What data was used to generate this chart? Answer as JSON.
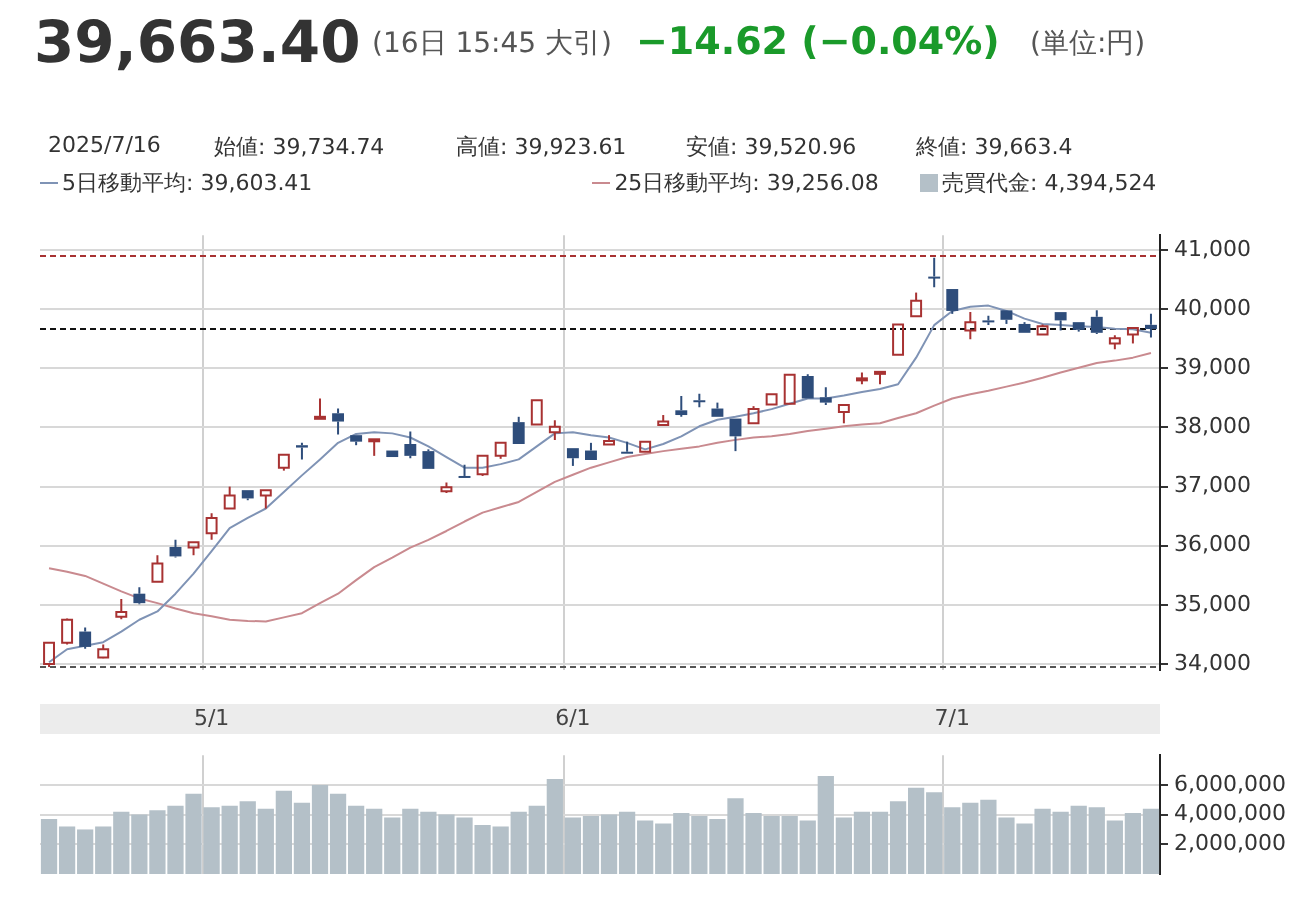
{
  "chart_data": [
    {
      "type": "candlestick",
      "title": "39,663.40",
      "subtitle": "(16日 15:45 大引)",
      "annotations": [
        "−14.62 (−0.04%)",
        "(単位:円)",
        "2025/7/16",
        "始値: 39,734.74",
        "高値: 39,923.61",
        "安値: 39,520.96",
        "終値: 39,663.4"
      ],
      "categories": [
        null,
        null,
        null,
        null,
        null,
        null,
        null,
        null,
        null,
        "5/1",
        null,
        null,
        null,
        null,
        null,
        null,
        null,
        null,
        null,
        null,
        null,
        null,
        null,
        null,
        null,
        null,
        null,
        null,
        null,
        "6/1",
        null,
        null,
        null,
        null,
        null,
        null,
        null,
        null,
        null,
        null,
        null,
        null,
        null,
        null,
        null,
        null,
        null,
        null,
        null,
        null,
        "7/1",
        null,
        null,
        null,
        null,
        null,
        null,
        null,
        null,
        null,
        null,
        null
      ],
      "ohlc": [
        [
          34000,
          34360,
          33950,
          34360
        ],
        [
          34360,
          34770,
          34330,
          34750
        ],
        [
          34550,
          34620,
          34260,
          34290
        ],
        [
          34110,
          34330,
          34100,
          34250
        ],
        [
          34800,
          35100,
          34760,
          34880
        ],
        [
          35190,
          35300,
          35010,
          35030
        ],
        [
          35390,
          35840,
          35390,
          35700
        ],
        [
          35980,
          36100,
          35800,
          35820
        ],
        [
          35970,
          36060,
          35840,
          36060
        ],
        [
          36210,
          36550,
          36100,
          36470
        ],
        [
          36630,
          37000,
          36630,
          36850
        ],
        [
          36940,
          36940,
          36770,
          36800
        ],
        [
          36850,
          36940,
          36630,
          36940
        ],
        [
          37320,
          37540,
          37270,
          37540
        ],
        [
          37700,
          37740,
          37460,
          37660
        ],
        [
          38170,
          38490,
          38170,
          38180
        ],
        [
          38240,
          38320,
          37880,
          38100
        ],
        [
          37870,
          37870,
          37700,
          37760
        ],
        [
          37780,
          37800,
          37520,
          37800
        ],
        [
          37610,
          37610,
          37500,
          37500
        ],
        [
          37720,
          37930,
          37480,
          37520
        ],
        [
          37600,
          37630,
          37300,
          37300
        ],
        [
          36920,
          37070,
          36890,
          36990
        ],
        [
          37180,
          37370,
          37170,
          37170
        ],
        [
          37210,
          37520,
          37180,
          37520
        ],
        [
          37520,
          37740,
          37470,
          37740
        ],
        [
          38090,
          38180,
          37720,
          37720
        ],
        [
          38050,
          38460,
          38050,
          38460
        ],
        [
          37920,
          38120,
          37790,
          38010
        ],
        [
          37650,
          37650,
          37350,
          37480
        ],
        [
          37610,
          37740,
          37450,
          37450
        ],
        [
          37710,
          37870,
          37710,
          37770
        ],
        [
          37590,
          37760,
          37560,
          37560
        ],
        [
          37590,
          37760,
          37590,
          37760
        ],
        [
          38040,
          38210,
          38040,
          38100
        ],
        [
          38290,
          38530,
          38180,
          38210
        ],
        [
          38460,
          38570,
          38340,
          38440
        ],
        [
          38320,
          38420,
          38180,
          38180
        ],
        [
          38150,
          38150,
          37600,
          37850
        ],
        [
          38070,
          38360,
          38070,
          38310
        ],
        [
          38390,
          38560,
          38390,
          38560
        ],
        [
          38400,
          38890,
          38400,
          38890
        ],
        [
          38870,
          38900,
          38490,
          38490
        ],
        [
          38510,
          38680,
          38380,
          38420
        ],
        [
          38260,
          38380,
          38070,
          38380
        ],
        [
          38810,
          38930,
          38730,
          38830
        ],
        [
          38930,
          38940,
          38730,
          38940
        ],
        [
          39230,
          39740,
          39230,
          39740
        ],
        [
          39880,
          40280,
          39880,
          40140
        ],
        [
          40550,
          40870,
          40370,
          40540
        ],
        [
          40340,
          40340,
          39920,
          39970
        ],
        [
          39640,
          39950,
          39490,
          39780
        ],
        [
          39810,
          39890,
          39730,
          39780
        ],
        [
          39980,
          39980,
          39750,
          39820
        ],
        [
          39750,
          39780,
          39600,
          39600
        ],
        [
          39570,
          39740,
          39570,
          39710
        ],
        [
          39950,
          39950,
          39640,
          39810
        ],
        [
          39780,
          39780,
          39620,
          39650
        ],
        [
          39870,
          39980,
          39580,
          39600
        ],
        [
          39420,
          39560,
          39320,
          39510
        ],
        [
          39570,
          39680,
          39420,
          39680
        ],
        [
          39734.74,
          39923.61,
          39520.96,
          39663.4
        ]
      ],
      "colors": [
        "#a83232",
        "#a83232",
        "#2e4d7b",
        "#a83232",
        "#a83232",
        "#2e4d7b",
        "#a83232",
        "#2e4d7b",
        "#a83232",
        "#a83232",
        "#a83232",
        "#2e4d7b",
        "#a83232",
        "#a83232",
        "#2e4d7b",
        "#a83232",
        "#2e4d7b",
        "#2e4d7b",
        "#a83232",
        "#2e4d7b",
        "#2e4d7b",
        "#2e4d7b",
        "#a83232",
        "#2e4d7b",
        "#a83232",
        "#a83232",
        "#2e4d7b",
        "#a83232",
        "#a83232",
        "#2e4d7b",
        "#2e4d7b",
        "#a83232",
        "#2e4d7b",
        "#a83232",
        "#a83232",
        "#2e4d7b",
        "#2e4d7b",
        "#2e4d7b",
        "#2e4d7b",
        "#a83232",
        "#a83232",
        "#a83232",
        "#2e4d7b",
        "#2e4d7b",
        "#a83232",
        "#a83232",
        "#a83232",
        "#a83232",
        "#a83232",
        "#2e4d7b",
        "#2e4d7b",
        "#a83232",
        "#2e4d7b",
        "#2e4d7b",
        "#2e4d7b",
        "#a83232",
        "#2e4d7b",
        "#2e4d7b",
        "#2e4d7b",
        "#a83232",
        "#a83232",
        "#2e4d7b"
      ],
      "series": [
        {
          "type": "line",
          "name": "5日移動平均: 39,603.41",
          "color": "#7f93b5",
          "values": [
            34030,
            34250,
            34310,
            34370,
            34550,
            34750,
            34890,
            35190,
            35530,
            35910,
            36300,
            36470,
            36630,
            36910,
            37190,
            37460,
            37740,
            37890,
            37920,
            37900,
            37830,
            37680,
            37500,
            37320,
            37320,
            37380,
            37460,
            37680,
            37900,
            37920,
            37870,
            37830,
            37740,
            37630,
            37720,
            37850,
            38020,
            38130,
            38180,
            38240,
            38310,
            38400,
            38490,
            38490,
            38540,
            38600,
            38650,
            38730,
            39180,
            39730,
            39970,
            40040,
            40060,
            39970,
            39840,
            39750,
            39730,
            39710,
            39700,
            39670,
            39660,
            39600
          ]
        },
        {
          "type": "line",
          "name": "25日移動平均: 39,256.08",
          "color": "#c98a8f",
          "values": [
            35620,
            35560,
            35490,
            35360,
            35230,
            35110,
            35030,
            34940,
            34860,
            34810,
            34750,
            34730,
            34720,
            34790,
            34860,
            35030,
            35190,
            35420,
            35640,
            35800,
            35970,
            36100,
            36250,
            36410,
            36560,
            36650,
            36740,
            36910,
            37080,
            37200,
            37320,
            37410,
            37500,
            37550,
            37600,
            37640,
            37680,
            37740,
            37790,
            37830,
            37850,
            37890,
            37940,
            37980,
            38020,
            38050,
            38070,
            38160,
            38240,
            38370,
            38490,
            38560,
            38620,
            38690,
            38760,
            38840,
            38930,
            39010,
            39090,
            39130,
            39180,
            39260
          ]
        }
      ],
      "ylim": [
        33900,
        41250
      ],
      "yticks": [
        {
          "value": 34000,
          "label": "34,000"
        },
        {
          "value": 35000,
          "label": "35,000"
        },
        {
          "value": 36000,
          "label": "36,000"
        },
        {
          "value": 37000,
          "label": "37,000"
        },
        {
          "value": 38000,
          "label": "38,000"
        },
        {
          "value": 39000,
          "label": "39,000"
        },
        {
          "value": 40000,
          "label": "40,000"
        },
        {
          "value": 41000,
          "label": "41,000"
        }
      ],
      "ref_lines": [
        {
          "axis": "y",
          "value": 40900,
          "color": "#a83232",
          "line_style": "dashed"
        },
        {
          "axis": "y",
          "value": 39663.4,
          "color": "#111111",
          "line_style": "dashed"
        },
        {
          "axis": "y",
          "value": 33950,
          "color": "#555555",
          "line_style": "dashed"
        }
      ],
      "grid": true,
      "legend": "top left",
      "marker": "none"
    },
    {
      "type": "bar",
      "tick_labels": "y",
      "categories": [
        null,
        null,
        null,
        null,
        null,
        null,
        null,
        null,
        null,
        null,
        null,
        null,
        null,
        null,
        null,
        null,
        null,
        null,
        null,
        null,
        null,
        null,
        null,
        null,
        null,
        null,
        null,
        null,
        null,
        null,
        null,
        null,
        null,
        null,
        null,
        null,
        null,
        null,
        null,
        null,
        null,
        null,
        null,
        null,
        null,
        null,
        null,
        null,
        null,
        null,
        null,
        null,
        null,
        null,
        null,
        null,
        null,
        null,
        null,
        null,
        null,
        null
      ],
      "series": [
        {
          "name": "売買代金: 4,394,524",
          "color": "#b4c0c8",
          "values": [
            3700000,
            3200000,
            3000000,
            3200000,
            4200000,
            4000000,
            4300000,
            4600000,
            5400000,
            4500000,
            4600000,
            4900000,
            4400000,
            5600000,
            4800000,
            6000000,
            5400000,
            4600000,
            4400000,
            3800000,
            4400000,
            4200000,
            4000000,
            3800000,
            3300000,
            3200000,
            4200000,
            4600000,
            6400000,
            3800000,
            3900000,
            4000000,
            4200000,
            3600000,
            3400000,
            4100000,
            3900000,
            3700000,
            5100000,
            4100000,
            3900000,
            3900000,
            3600000,
            6600000,
            3800000,
            4200000,
            4200000,
            4900000,
            5800000,
            5500000,
            4500000,
            4800000,
            5000000,
            3800000,
            3400000,
            4400000,
            4200000,
            4600000,
            4500000,
            3600000,
            4100000,
            4400000
          ]
        }
      ],
      "ylim": [
        0,
        8000000
      ],
      "yticks": [
        {
          "value": 2000000,
          "label": "2,000,000"
        },
        {
          "value": 4000000,
          "label": "4,000,000"
        },
        {
          "value": 6000000,
          "label": "6,000,000"
        }
      ],
      "grid": true,
      "legend": "top right"
    }
  ]
}
